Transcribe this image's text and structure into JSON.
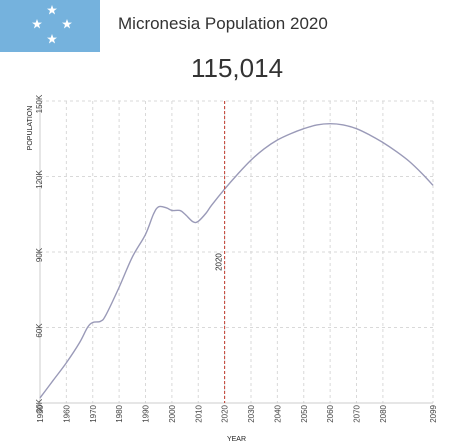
{
  "header": {
    "title": "Micronesia Population 2020",
    "population": "115,014"
  },
  "colors": {
    "flag_blue": "#75b2dd",
    "line": "#9a9ab8",
    "marker": "#c0392b",
    "grid": "#d9d9d9"
  },
  "icons": {
    "flag": "micronesia-flag-icon"
  },
  "chart_data": {
    "type": "line",
    "xlabel": "YEAR",
    "ylabel": "POPULATION",
    "xlim": [
      1950,
      2099
    ],
    "ylim": [
      30000,
      150000
    ],
    "x_ticks": [
      "1950",
      "1960",
      "1970",
      "1980",
      "1990",
      "2000",
      "2010",
      "2020",
      "2030",
      "2040",
      "2050",
      "2060",
      "2070",
      "2080",
      "2099"
    ],
    "y_ticks": [
      {
        "value": 30000,
        "label": "30K"
      },
      {
        "value": 60000,
        "label": "60K"
      },
      {
        "value": 90000,
        "label": "90K"
      },
      {
        "value": 120000,
        "label": "120K"
      },
      {
        "value": 150000,
        "label": "150K"
      }
    ],
    "marker": {
      "year": 2020,
      "label": "2020"
    },
    "grid": true,
    "series": [
      {
        "x": [
          1950,
          1955,
          1960,
          1965,
          1968,
          1970,
          1973,
          1975,
          1980,
          1985,
          1990,
          1993,
          1995,
          1998,
          2000,
          2003,
          2005,
          2008,
          2010,
          2013,
          2015,
          2020,
          2025,
          2030,
          2035,
          2040,
          2045,
          2050,
          2055,
          2060,
          2065,
          2070,
          2075,
          2080,
          2085,
          2090,
          2095,
          2099
        ],
        "y": [
          32000,
          39000,
          46000,
          54000,
          60000,
          62000,
          62500,
          65000,
          76000,
          88000,
          97000,
          105000,
          108000,
          107500,
          106500,
          106500,
          105000,
          102000,
          102200,
          105500,
          108500,
          115014,
          121000,
          126500,
          131000,
          134500,
          137000,
          139000,
          140500,
          141000,
          140500,
          139000,
          136500,
          133500,
          130000,
          126000,
          121000,
          116500
        ]
      }
    ]
  }
}
